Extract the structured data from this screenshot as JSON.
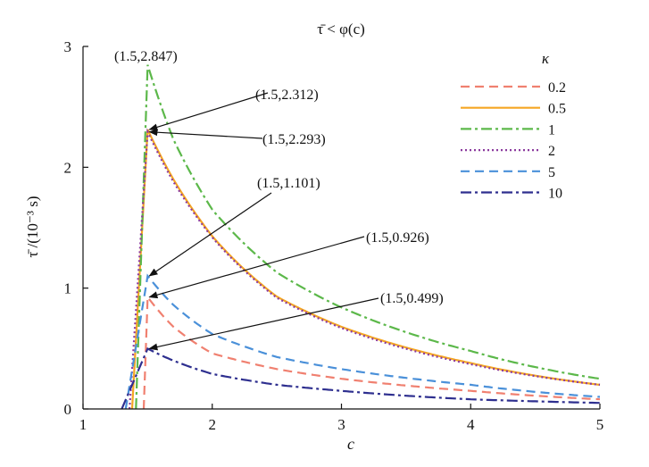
{
  "chart_data": {
    "type": "line",
    "title": "τ̄ < φ(c)",
    "xlabel": "c",
    "ylabel": "τ̄ /(10⁻³ s)",
    "xlim": [
      1,
      5
    ],
    "ylim": [
      0,
      3
    ],
    "x_ticks": [
      1,
      2,
      3,
      4,
      5
    ],
    "y_ticks": [
      0,
      1,
      2,
      3
    ],
    "x_tick_labels": [
      "1",
      "2",
      "3",
      "4",
      "5"
    ],
    "y_tick_labels": [
      "0",
      "1",
      "2",
      "3"
    ],
    "grid": false,
    "legend": {
      "title": "κ",
      "position": "top-right"
    },
    "series": [
      {
        "name": "0.2",
        "color": "#f08070",
        "dash": "dash",
        "x": [
          1.47,
          1.5,
          1.7,
          2.0,
          2.5,
          3.0,
          4.0,
          5.0
        ],
        "y": [
          0.0,
          0.926,
          0.68,
          0.46,
          0.33,
          0.25,
          0.15,
          0.08
        ]
      },
      {
        "name": "0.5",
        "color": "#f5a623",
        "dash": "solid",
        "x": [
          1.38,
          1.5,
          1.7,
          2.0,
          2.5,
          3.0,
          4.0,
          5.0
        ],
        "y": [
          0.0,
          2.312,
          1.9,
          1.43,
          0.93,
          0.68,
          0.38,
          0.2
        ]
      },
      {
        "name": "1",
        "color": "#5cb84a",
        "dash": "dashdot",
        "x": [
          1.41,
          1.5,
          1.7,
          2.0,
          2.5,
          3.0,
          4.0,
          5.0
        ],
        "y": [
          0.0,
          2.847,
          2.23,
          1.65,
          1.13,
          0.84,
          0.48,
          0.25
        ]
      },
      {
        "name": "2",
        "color": "#8b3a9e",
        "dash": "dot",
        "x": [
          1.36,
          1.5,
          1.7,
          2.0,
          2.5,
          3.0,
          4.0,
          5.0
        ],
        "y": [
          0.0,
          2.293,
          1.88,
          1.42,
          0.92,
          0.67,
          0.37,
          0.2
        ]
      },
      {
        "name": "5",
        "color": "#4a90d9",
        "dash": "dash",
        "x": [
          1.33,
          1.5,
          1.7,
          2.0,
          2.5,
          3.0,
          4.0,
          5.0
        ],
        "y": [
          0.0,
          1.101,
          0.86,
          0.62,
          0.43,
          0.33,
          0.2,
          0.1
        ]
      },
      {
        "name": "10",
        "color": "#2e2f8f",
        "dash": "dashdot",
        "x": [
          1.3,
          1.5,
          1.7,
          2.0,
          2.5,
          3.0,
          4.0,
          5.0
        ],
        "y": [
          0.0,
          0.499,
          0.4,
          0.29,
          0.2,
          0.15,
          0.08,
          0.05
        ]
      }
    ],
    "annotations": [
      {
        "text": "(1.5,2.847)",
        "point": [
          1.5,
          2.847
        ],
        "arrow": false
      },
      {
        "text": "(1.5,2.312)",
        "point": [
          1.5,
          2.312
        ],
        "arrow": true
      },
      {
        "text": "(1.5,2.293)",
        "point": [
          1.5,
          2.293
        ],
        "arrow": true
      },
      {
        "text": "(1.5,1.101)",
        "point": [
          1.5,
          1.101
        ],
        "arrow": true
      },
      {
        "text": "(1.5,0.926)",
        "point": [
          1.5,
          0.926
        ],
        "arrow": true
      },
      {
        "text": "(1.5,0.499)",
        "point": [
          1.5,
          0.499
        ],
        "arrow": true
      }
    ]
  }
}
